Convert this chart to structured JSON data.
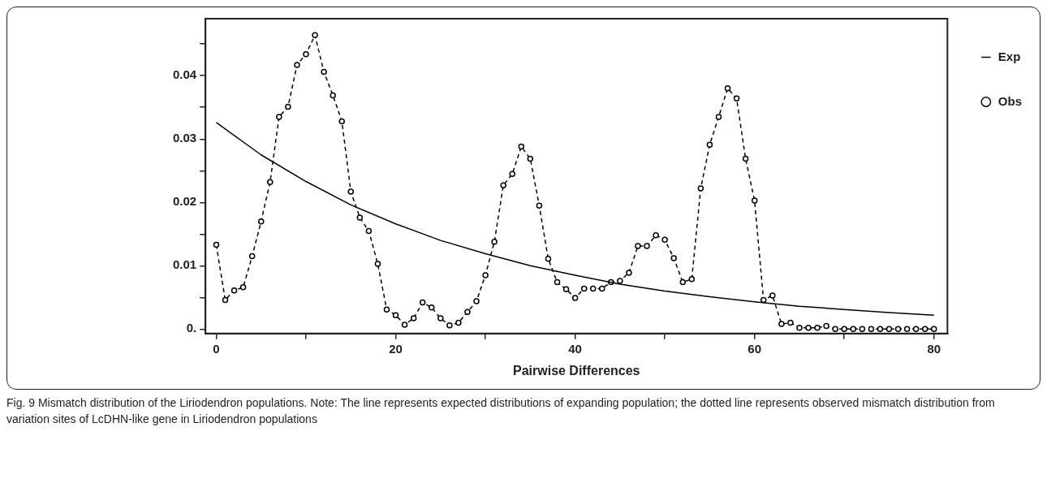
{
  "chart_data": {
    "type": "line",
    "xlabel": "Pairwise Differences",
    "annotations": [
      "Fig. 9 Mismatch distribution of the Liriodendron populations. Note: The line represents expected distributions of expanding population; the dotted line represents observed mismatch distribution from variation sites of LcDHN-like gene in Liriodendron populations"
    ],
    "xlim": [
      -1.2,
      81.5
    ],
    "xticks": [
      0,
      {
        "value": 10,
        "label": null
      },
      20,
      {
        "value": 30,
        "label": null
      },
      40,
      {
        "value": 50,
        "label": null
      },
      60,
      {
        "value": 70,
        "label": null
      },
      80
    ],
    "ylim": [
      -0.0007,
      0.049
    ],
    "yticks": [
      {
        "value": 0,
        "label": "0."
      },
      {
        "value": 0.005,
        "label": null
      },
      0.01,
      {
        "value": 0.015,
        "label": null
      },
      0.02,
      {
        "value": 0.025,
        "label": null
      },
      0.03,
      {
        "value": 0.035,
        "label": null
      },
      0.04,
      {
        "value": 0.045,
        "label": null
      }
    ],
    "grid": false,
    "legend": "right",
    "series": [
      {
        "name": "Exp",
        "color": "#000000",
        "marker": "none",
        "line_style": "solid",
        "x": [
          0,
          5,
          10,
          15,
          20,
          25,
          30,
          35,
          40,
          45,
          50,
          55,
          60,
          65,
          70,
          75,
          80
        ],
        "values": [
          0.0326,
          0.0275,
          0.0233,
          0.0196,
          0.0166,
          0.014,
          0.0119,
          0.01,
          0.0085,
          0.0071,
          0.006,
          0.0051,
          0.0043,
          0.0036,
          0.0031,
          0.0026,
          0.0022
        ]
      },
      {
        "name": "Obs",
        "color": "#000000",
        "marker": "circle",
        "line_style": "dashed",
        "x": [
          0,
          1,
          2,
          3,
          4,
          5,
          6,
          7,
          8,
          9,
          10,
          11,
          12,
          13,
          14,
          15,
          16,
          17,
          18,
          19,
          20,
          21,
          22,
          23,
          24,
          25,
          26,
          27,
          28,
          29,
          30,
          31,
          32,
          33,
          34,
          35,
          36,
          37,
          38,
          39,
          40,
          41,
          42,
          43,
          44,
          45,
          46,
          47,
          48,
          49,
          50,
          51,
          52,
          53,
          54,
          55,
          56,
          57,
          58,
          59,
          60,
          61,
          62,
          63,
          64,
          65,
          66,
          67,
          68,
          69,
          70,
          71,
          72,
          73,
          74,
          75,
          76,
          77,
          78,
          79,
          80
        ],
        "values": [
          0.0133,
          0.0046,
          0.0061,
          0.0066,
          0.0115,
          0.017,
          0.0232,
          0.0335,
          0.0351,
          0.0417,
          0.0434,
          0.0464,
          0.0406,
          0.0369,
          0.0328,
          0.0217,
          0.0176,
          0.0155,
          0.0103,
          0.0031,
          0.0022,
          0.0007,
          0.0017,
          0.0042,
          0.0034,
          0.0017,
          0.0006,
          0.001,
          0.0027,
          0.0044,
          0.0085,
          0.0138,
          0.0227,
          0.0245,
          0.0288,
          0.0269,
          0.0195,
          0.0111,
          0.0074,
          0.0063,
          0.0049,
          0.0064,
          0.0064,
          0.0064,
          0.0074,
          0.0076,
          0.0089,
          0.0131,
          0.0131,
          0.0148,
          0.0141,
          0.0112,
          0.0074,
          0.0079,
          0.0222,
          0.0291,
          0.0335,
          0.038,
          0.0364,
          0.0269,
          0.0203,
          0.0046,
          0.0053,
          0.0008,
          0.001,
          0.0002,
          0.0002,
          0.0002,
          0.0005,
          0,
          0,
          0,
          0,
          0,
          0,
          0,
          0,
          0,
          0,
          0,
          0
        ]
      }
    ]
  }
}
